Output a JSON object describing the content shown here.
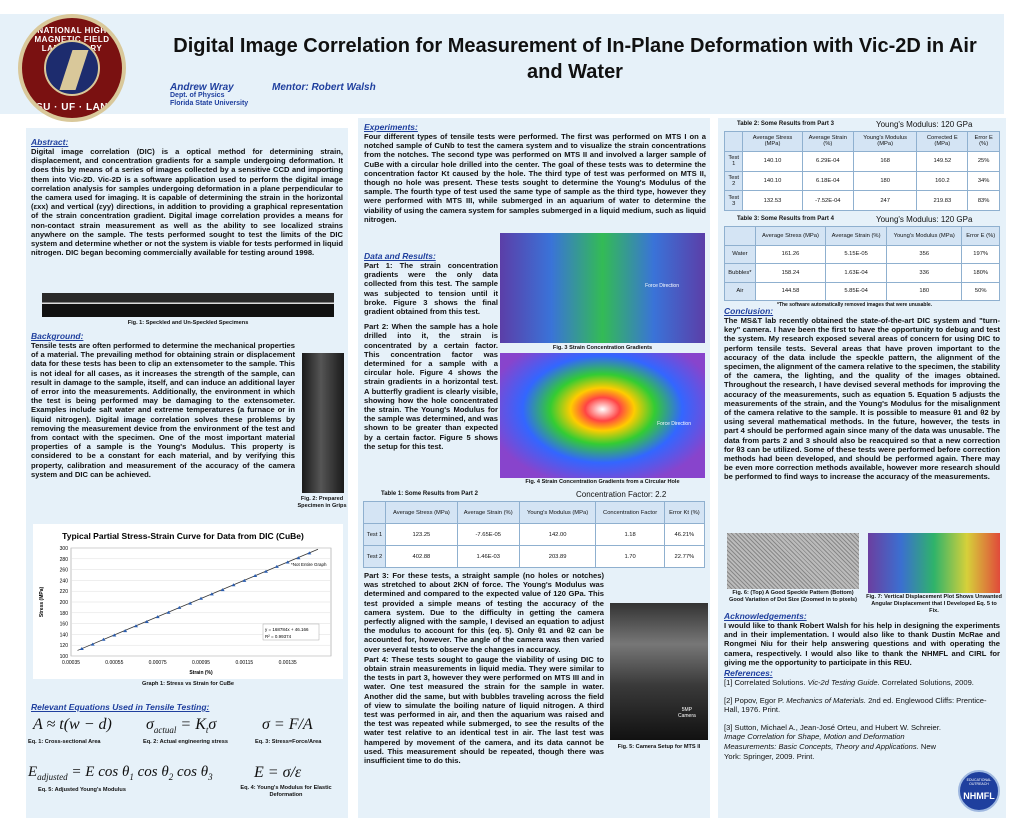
{
  "header": {
    "title": "Digital Image Correlation for Measurement of In-Plane Deformation with Vic-2D in Air and Water",
    "author": "Andrew Wray",
    "mentor": "Mentor: Robert Walsh",
    "dept": "Dept. of Physics",
    "university": "Florida State University",
    "logo_text_top": "NATIONAL HIGH MAGNETIC FIELD LABORATORY",
    "logo_text_bottom": "FSU · UF · LANL"
  },
  "abstract": {
    "heading": "Abstract:",
    "text": "Digital image correlation (DIC) is a optical method for determining strain, displacement, and concentration gradients for a sample undergoing deformation. It does this by means of a series of images collected by a sensitive CCD and importing them into Vic-2D. Vic-2D is a software application used to perform the digital image correlation analysis for samples undergoing deformation in a plane perpendicular to the camera used for imaging. It is capable of determining the strain in the horizontal (εxx) and vertical (εyy) directions, in addition to providing a graphical representation of the strain concentration gradient. Digital image correlation provides a means for non-contact strain measurement as well as the ability to see localized strains anywhere on the sample. The tests performed sought to test the limits of the DIC system and determine whether or not the system is viable for tests performed in liquid nitrogen. DIC began becoming commercially available for testing around 1998."
  },
  "fig1": {
    "caption": "Fig. 1: Speckled and Un-Speckled Specimens"
  },
  "background": {
    "heading": "Background:",
    "text": "Tensile tests are often performed to determine the mechanical properties of a material. The prevailing method for obtaining strain or displacement data for these tests has been to clip an extensometer to the sample. This is not ideal for all cases, as it increases the strength of the sample, can result in damage to the sample, itself, and can induce an additional layer of error into the measurements. Additionally, the environment in which the test is being performed may be damaging to the extensometer. Examples include salt water and extreme temperatures (a furnace or in liquid nitrogen). Digital image correlation solves these problems by removing the measurement device from the environment of the test and from contact with the specimen. One of the most important material properties of a sample is the Young's Modulus. This property is considered to be a constant for each material, and by verifying this property, calibration and measurement of the accuracy of the camera system and DIC can be achieved."
  },
  "fig2": {
    "caption": "Fig. 2: Prepared Specimen in Grips"
  },
  "graph1": {
    "caption": "Graph 1: Stress vs Strain for CuBe"
  },
  "chart_data": {
    "type": "scatter",
    "title": "Typical Partial Stress-Strain Curve for Data from DIC (CuBe)",
    "xlabel": "Strain (%)",
    "ylabel": "Stress (MPa)",
    "xlim": [
      0.00035,
      0.00155
    ],
    "ylim": [
      100,
      300
    ],
    "xticks": [
      "0.00035",
      "0.00055",
      "0.00075",
      "0.00095",
      "0.00115",
      "0.00135"
    ],
    "yticks": [
      "100",
      "120",
      "140",
      "160",
      "180",
      "200",
      "220",
      "240",
      "260",
      "280",
      "300"
    ],
    "legend": "*Not Entire Graph",
    "fit_label_1": "y = 168784x + 46.166",
    "fit_label_2": "R² = 0.99374",
    "fit": {
      "slope": 168784,
      "intercept": 46.166
    },
    "x": [
      0.0004,
      0.00045,
      0.0005,
      0.00055,
      0.0006,
      0.00065,
      0.0007,
      0.00075,
      0.0008,
      0.00085,
      0.0009,
      0.00095,
      0.001,
      0.00105,
      0.0011,
      0.00115,
      0.0012,
      0.00125,
      0.0013,
      0.00135,
      0.0014,
      0.00145
    ],
    "y": [
      114,
      122,
      131,
      139,
      147,
      156,
      164,
      173,
      181,
      190,
      198,
      207,
      215,
      223,
      232,
      240,
      249,
      257,
      266,
      274,
      282,
      291
    ]
  },
  "equations": {
    "heading": "Relevant Equations Used in Tensile Testing:",
    "eq1_label": "Eq. 1: Cross-sectional Area",
    "eq2_label": "Eq. 2: Actual engineering stress",
    "eq3_label": "Eq. 3: Stress=Force/Area",
    "eq5_label": "Eq. 5: Adjusted Young's Modulus",
    "eq4_label": "Eq. 4: Young's Modulus for Elastic Deformation"
  },
  "experiments": {
    "heading": "Experiments:",
    "text": "Four different types of tensile tests were performed. The first was performed on MTS I on a notched sample of CuNb to test the camera system and to visualize the strain concentrations from the notches. The second type was performed on MTS II and involved a larger sample of CuBe with a circular hole drilled into the center. The goal of these tests was to determine the concentration factor Kt caused by the hole. The third type of test was performed on MTS II, though no hole was present. These tests sought to determine the Young's Modulus of the sample. The fourth type of test used the same type of sample as the third type, however they were performed with MTS III, while submerged in an aquarium of water to determine the viability of using the camera system for samples submerged in a liquid medium, such as liquid nitrogen."
  },
  "results": {
    "heading": "Data and Results:",
    "part1": "Part 1: The strain concentration gradients were the only data collected from this test. The sample was subjected to tension until it broke. Figure 3 shows the final gradient obtained from this test.",
    "part2": "Part 2: When the sample has a hole drilled into it, the strain is concentrated by a certain factor. This concentration factor was determined for a sample with a circular hole. Figure 4 shows the strain gradients in a horizontal test. A butterfly gradient is clearly visible, showing how the hole concentrated the strain. The Young's Modulus for the sample was determined, and was shown to be greater than expected by a certain factor. Figure 5 shows the setup for this test.",
    "fig3_caption": "Fig. 3 Strain Concentration Gradients",
    "fig4_caption": "Fig. 4 Strain Concentration Gradients from a Circular Hole",
    "force_direction": "Force Direction",
    "part3": "Part 3: For these tests, a straight sample (no holes or notches) was stretched to about 2KN of force. The Young's Modulus was determined and compared to the expected value of 120 GPa. This test provided a simple means of testing the accuracy of the camera system. Due to the difficulty in getting the camera perfectly aligned with the sample, I devised an equation to adjust the modulus to account for this (eq. 5). Only θ1 and θ2 can be accounted for, however. The angle of the camera was then varied over several tests to observe the changes in accuracy.",
    "part4": "Part 4: These tests sought to gauge the viability of using DIC to obtain strain measurements in liquid media. They were similar to the tests in part 3, however they were performed on MTS III and in water. One test measured the strain for the sample in water. Another did the same, but with bubbles traveling across the field of view to simulate the boiling nature of liquid nitrogen. A third test was performed in air, and then the aquarium was raised and the test was repeated while submerged, to see the results of the water test relative to an identical test in air. The last test was hampered by movement of the camera, and its data cannot be used. This measurement should be repeated, though there was insufficient time to do this.",
    "fig5_caption": "Fig. 5: Camera Setup for MTS II",
    "fig5_label_1": "5MP",
    "fig5_label_2": "Camera"
  },
  "table1": {
    "title": "Table 1: Some Results from Part 2",
    "extra": "Concentration Factor: 2.2",
    "headers": [
      "",
      "Average Stress (MPa)",
      "Average Strain (%)",
      "Young's Modulus (MPa)",
      "Concentration Factor",
      "Error Kt (%)"
    ],
    "rows": [
      [
        "Test 1",
        "123.25",
        "-7.65E-05",
        "142.00",
        "1.18",
        "46.21%"
      ],
      [
        "Test 2",
        "402.88",
        "1.46E-03",
        "203.89",
        "1.70",
        "22.77%"
      ]
    ]
  },
  "table2": {
    "title": "Table 2: Some Results from Part 3",
    "extra": "Young's Modulus: 120 GPa",
    "headers": [
      "",
      "Average Stress (MPa)",
      "Average Strain (%)",
      "Young's Modulus (MPa)",
      "Corrected E (MPa)",
      "Error E (%)"
    ],
    "rows": [
      [
        "Test 1",
        "140.10",
        "6.29E-04",
        "168",
        "149.52",
        "25%"
      ],
      [
        "Test 2",
        "140.10",
        "6.18E-04",
        "180",
        "160.2",
        "34%"
      ],
      [
        "Test 3",
        "132.53",
        "-7.52E-04",
        "247",
        "219.83",
        "83%"
      ]
    ]
  },
  "table3": {
    "title": "Table 3: Some Results from Part 4",
    "extra": "Young's Modulus: 120 GPa",
    "headers": [
      "",
      "Average Stress (MPa)",
      "Average Strain (%)",
      "Young's Modulus (MPa)",
      "Error E (%)"
    ],
    "rows": [
      [
        "Water",
        "161.26",
        "5.15E-05",
        "356",
        "197%"
      ],
      [
        "Bubbles*",
        "158.24",
        "1.63E-04",
        "336",
        "180%"
      ],
      [
        "Air",
        "144.58",
        "5.85E-04",
        "180",
        "50%"
      ]
    ],
    "note": "*The software automatically removed images that were unusable."
  },
  "conclusion": {
    "heading": "Conclusion:",
    "text": "The MS&T lab recently obtained the state-of-the-art DIC system and \"turn-key\" camera. I have been the first to have the opportunity to debug and test the system. My research exposed several areas of concern for using DIC to perform tensile tests. Several areas that have proven important to the accuracy of the data include the speckle pattern, the alignment of the specimen, the alignment of the camera relative to the specimen, the stability of the camera, the lighting, and the quality of the images obtained. Throughout the research, I have devised several methods for improving the accuracy of the measurements, such as equation 5. Equation 5 adjusts the measurements of the strain, and the Young's Modulus for the misalignment of the camera relative to the sample. It is possible to measure θ1 and θ2 by using several mathematical methods. In the future, however, the tests in part 4 should be performed again since many of the data was unusable. The data from parts 2 and 3 should also be reacquired so that a new correction for θ3 can be utilized. Some of these tests were performed before correction methods had been developed, and should be performed again. There may be even more correction methods available, however more research should be performed to find ways to increase the accuracy of the measurements."
  },
  "fig6": {
    "caption": "Fig. 6: (Top) A Good Speckle Pattern (Bottom) Good Variation of Dot Size (Zoomed in to pixels)"
  },
  "fig7": {
    "caption": "Fig. 7: Vertical Displacement Plot Shows Unwanted Angular Displacement that I Developed Eq. 5 to Fix."
  },
  "ack": {
    "heading": "Acknowledgements:",
    "text": "I would like to thank Robert Walsh for his help in designing the experiments and in their implementation. I would also like to thank Dustin McRae and Rongmei Niu for their help answering questions and with operating the camera, respectively. I would also like to thank the NHMFL and CIRL for giving me the opportunity to participate in this REU."
  },
  "refs": {
    "heading": "References:",
    "r1a": "[1] Correlated Solutions. ",
    "r1b": "Vic-2d Testing Guide.",
    "r1c": " Correlated Solutions, 2009.",
    "r2a": "[2] Popov, Egor P. ",
    "r2b": "Mechanics of Materials.",
    "r2c": " 2nd ed. Englewood Cliffs: Prentice-Hall, 1976. Print.",
    "r3a": "[3] Sutton, Michael A., Jean-José Orteu, and Hubert W. Schreier. ",
    "r3b": "Image Correlation for Shape, Motion and Deformation Measurements: Basic Concepts, Theory and Applications.",
    "r3c": " New York: Springer, 2009. Print."
  },
  "footer_logo": {
    "top": "EDUCATIONAL OUTREACH",
    "main": "NHMFL"
  }
}
